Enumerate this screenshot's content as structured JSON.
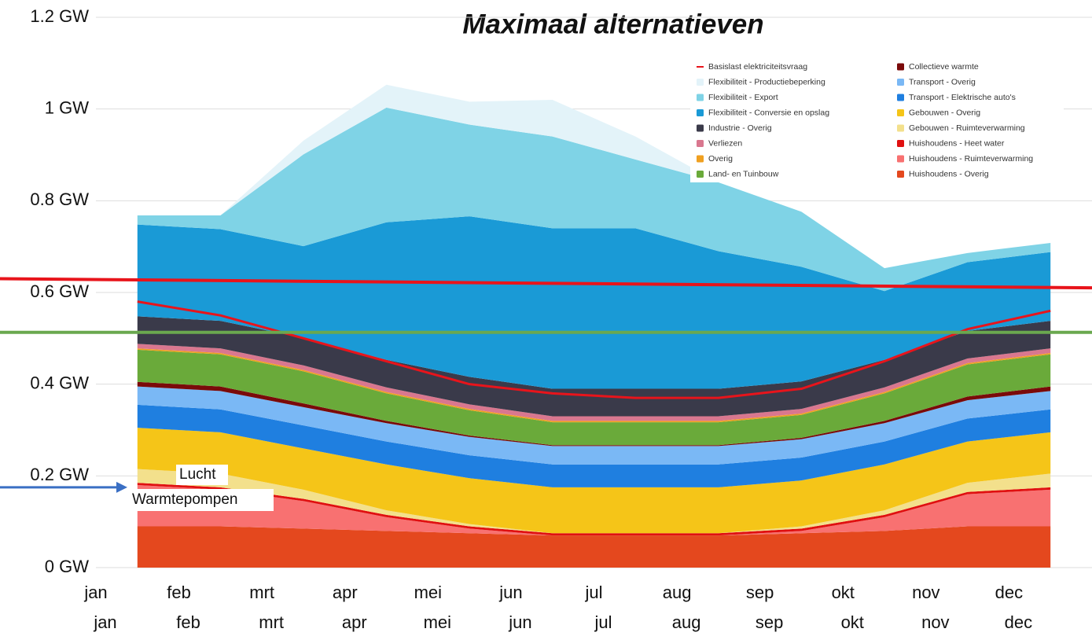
{
  "chart_data": {
    "type": "stacked_area",
    "title": "Maximaal alternatieven",
    "categories": [
      "jan",
      "feb",
      "mrt",
      "apr",
      "mei",
      "jun",
      "jul",
      "aug",
      "sep",
      "okt",
      "nov",
      "dec"
    ],
    "categories_secondary": [
      "jan",
      "feb",
      "mrt",
      "apr",
      "mei",
      "jun",
      "jul",
      "aug",
      "sep",
      "okt",
      "nov",
      "dec"
    ],
    "ylim": [
      0,
      1.2
    ],
    "yticks": [
      {
        "value": 0,
        "label": "0 GW"
      },
      {
        "value": 0.2,
        "label": "0.2 GW"
      },
      {
        "value": 0.4,
        "label": "0.4 GW"
      },
      {
        "value": 0.6,
        "label": "0.6 GW"
      },
      {
        "value": 0.8,
        "label": "0.8 GW"
      },
      {
        "value": 1,
        "label": "1 GW"
      },
      {
        "value": 1.2,
        "label": "1.2 GW"
      }
    ],
    "grid": true,
    "legend": "top-right",
    "series": [
      {
        "name": "Basislast elektriciteitsvraag",
        "kind": "line",
        "color": "#e8141b",
        "values": [
          0.58,
          0.55,
          0.5,
          0.45,
          0.4,
          0.38,
          0.37,
          0.37,
          0.39,
          0.45,
          0.52,
          0.56
        ]
      },
      {
        "name": "Flexibiliteit - Productiebeperking",
        "color": "#e3f3f9",
        "values": [
          0,
          0,
          0.03,
          0.05,
          0.05,
          0.08,
          0.05,
          0,
          0,
          0,
          0,
          0
        ]
      },
      {
        "name": "Flexibiliteit - Export",
        "color": "#7fd3e6",
        "values": [
          0.02,
          0.03,
          0.2,
          0.25,
          0.2,
          0.2,
          0.15,
          0.15,
          0.12,
          0.05,
          0.02,
          0.02
        ]
      },
      {
        "name": "Flexibiliteit - Conversie en opslag",
        "color": "#1a9ad6",
        "values": [
          0.2,
          0.2,
          0.2,
          0.3,
          0.35,
          0.35,
          0.35,
          0.3,
          0.25,
          0.15,
          0.15,
          0.15
        ]
      },
      {
        "name": "Industrie - Overig",
        "color": "#3a3a4a",
        "values": [
          0.06,
          0.06,
          0.06,
          0.06,
          0.06,
          0.06,
          0.06,
          0.06,
          0.06,
          0.06,
          0.06,
          0.06
        ]
      },
      {
        "name": "Verliezen",
        "color": "#d9778f",
        "values": [
          0.01,
          0.01,
          0.01,
          0.01,
          0.01,
          0.01,
          0.01,
          0.01,
          0.01,
          0.01,
          0.01,
          0.01
        ]
      },
      {
        "name": "Overig",
        "color": "#f0a020",
        "values": [
          0.003,
          0.003,
          0.003,
          0.003,
          0.003,
          0.003,
          0.003,
          0.003,
          0.003,
          0.003,
          0.003,
          0.003
        ]
      },
      {
        "name": "Land- en Tuinbouw",
        "color": "#6aaa3a",
        "values": [
          0.07,
          0.07,
          0.07,
          0.06,
          0.055,
          0.05,
          0.05,
          0.05,
          0.05,
          0.06,
          0.07,
          0.07
        ]
      },
      {
        "name": "Collectieve warmte",
        "color": "#7a0a0a",
        "values": [
          0.01,
          0.01,
          0.008,
          0.005,
          0.003,
          0.002,
          0.002,
          0.002,
          0.003,
          0.005,
          0.008,
          0.01
        ]
      },
      {
        "name": "Transport - Overig",
        "color": "#7ab8f5",
        "values": [
          0.04,
          0.04,
          0.04,
          0.04,
          0.04,
          0.04,
          0.04,
          0.04,
          0.04,
          0.04,
          0.04,
          0.04
        ]
      },
      {
        "name": "Transport - Elektrische auto's",
        "color": "#1f7fe0",
        "values": [
          0.05,
          0.05,
          0.05,
          0.05,
          0.05,
          0.05,
          0.05,
          0.05,
          0.05,
          0.05,
          0.05,
          0.05
        ]
      },
      {
        "name": "Gebouwen - Overig",
        "color": "#f5c518",
        "values": [
          0.09,
          0.09,
          0.09,
          0.1,
          0.1,
          0.1,
          0.1,
          0.1,
          0.1,
          0.1,
          0.09,
          0.09
        ]
      },
      {
        "name": "Gebouwen - Ruimteverwarming",
        "color": "#f3e08c",
        "values": [
          0.03,
          0.03,
          0.02,
          0.01,
          0.005,
          0,
          0,
          0,
          0.005,
          0.01,
          0.02,
          0.03
        ]
      },
      {
        "name": "Huishoudens - Heet water",
        "color": "#e01010",
        "values": [
          0.005,
          0.005,
          0.005,
          0.005,
          0.005,
          0.005,
          0.005,
          0.005,
          0.005,
          0.005,
          0.005,
          0.005
        ]
      },
      {
        "name": "Huishoudens - Ruimteverwarming",
        "color": "#f87171",
        "values": [
          0.09,
          0.08,
          0.06,
          0.03,
          0.01,
          0,
          0,
          0,
          0.005,
          0.03,
          0.07,
          0.08
        ]
      },
      {
        "name": "Huishoudens - Overig",
        "color": "#e4481e",
        "values": [
          0.09,
          0.09,
          0.085,
          0.08,
          0.075,
          0.07,
          0.07,
          0.07,
          0.075,
          0.08,
          0.09,
          0.09
        ]
      }
    ],
    "reference_lines": [
      {
        "color": "#e8141b",
        "values": [
          0.63,
          0.61
        ]
      },
      {
        "color": "#6aa84f",
        "values": [
          0.513,
          0.513
        ]
      }
    ],
    "arrow": {
      "color": "#3a6fc4",
      "value": 0.175
    },
    "annotations": [
      "Lucht",
      "Warmtepompen"
    ]
  }
}
